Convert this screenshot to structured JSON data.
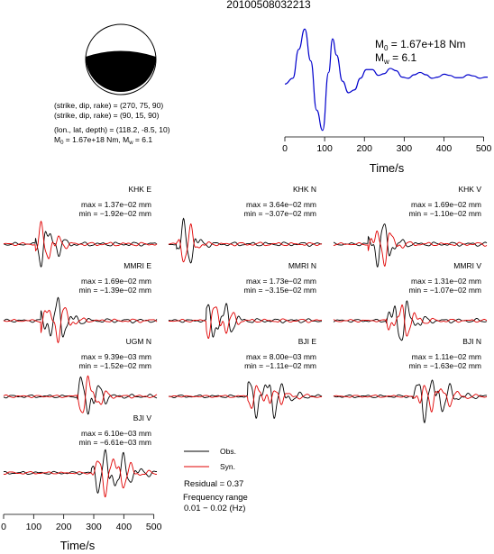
{
  "title": "20100508032213",
  "focal_mechanism": {
    "plane1": "(strike, dip, rake) = (270, 75, 90)",
    "plane2": "(strike, dip, rake) = (90, 15, 90)",
    "location": "(lon., lat, depth) = (118.2, -8.5, 10)",
    "moment_line_prefix": "M",
    "moment_line_body": " = 1.67e+18 Nm, M",
    "moment_line_suffix": " = 6.1",
    "sub0": "0",
    "subw": "w"
  },
  "stf": {
    "m0_label": "M",
    "m0_sub": "0",
    "m0_value": " = 1.67e+18 Nm",
    "mw_label": "M",
    "mw_sub": "w",
    "mw_value": " = 6.1",
    "xlabel": "Time/s"
  },
  "legend": {
    "obs": "Obs.",
    "syn": "Syn.",
    "residual": "Residual = 0.37",
    "freq_title": "Frequency range",
    "freq_value": "0.01 − 0.02 (Hz)"
  },
  "bottom_axis": {
    "xlabel": "Time/s"
  },
  "colors": {
    "observed": "#000000",
    "synthetic": "#e00000",
    "stf": "#0000cc"
  },
  "chart_data": [
    {
      "type": "line",
      "name": "source-time-function",
      "xlim": [
        0,
        510
      ],
      "xticks": [
        0,
        100,
        200,
        300,
        400,
        500
      ],
      "xlabel": "Time/s",
      "series": [
        {
          "x": [
            0,
            20,
            35,
            50,
            65,
            80,
            95,
            110,
            120,
            130,
            145,
            160,
            175,
            190,
            205,
            220,
            235,
            250,
            265,
            280,
            295,
            310,
            325,
            340,
            355,
            370,
            385,
            400,
            415,
            430,
            445,
            460,
            475,
            490,
            505,
            510
          ],
          "y": [
            0.0,
            0.1,
            0.6,
            0.95,
            0.4,
            -0.45,
            -0.8,
            0.2,
            0.78,
            0.5,
            0.05,
            -0.15,
            -0.1,
            0.1,
            0.25,
            0.25,
            0.15,
            0.18,
            0.27,
            0.23,
            0.12,
            0.1,
            0.16,
            0.2,
            0.16,
            0.1,
            0.12,
            0.17,
            0.15,
            0.11,
            0.11,
            0.16,
            0.14,
            0.1,
            0.12,
            0.12
          ]
        }
      ]
    },
    {
      "type": "line",
      "name": "waveforms",
      "xlim": [
        0,
        510
      ],
      "xticks": [
        0,
        100,
        200,
        300,
        400,
        500
      ],
      "xlabel": "Time/s",
      "panels": [
        {
          "station": "KHK E",
          "max": "max = 1.37e−02 mm",
          "min": "min = −1.92e−02 mm",
          "p0": 110,
          "w": 90,
          "amp": 1.0,
          "seed": 1,
          "misfit": 0.2
        },
        {
          "station": "KHK N",
          "max": "max = 3.64e−02 mm",
          "min": "min = −3.07e−02 mm",
          "p0": 30,
          "w": 80,
          "amp": 1.0,
          "seed": 2,
          "misfit": 0.25
        },
        {
          "station": "KHK V",
          "max": "max = 1.69e−02 mm",
          "min": "min = −1.10e−02 mm",
          "p0": 120,
          "w": 100,
          "amp": 0.95,
          "seed": 3,
          "misfit": 0.2
        },
        {
          "station": "MMRI E",
          "max": "max = 1.69e−02 mm",
          "min": "min = −1.39e−02 mm",
          "p0": 130,
          "w": 110,
          "amp": 0.95,
          "seed": 4,
          "misfit": 0.3
        },
        {
          "station": "MMRI N",
          "max": "max = 1.73e−02 mm",
          "min": "min = −3.15e−02 mm",
          "p0": 130,
          "w": 100,
          "amp": 1.0,
          "seed": 5,
          "misfit": 0.25
        },
        {
          "station": "MMRI V",
          "max": "max = 1.31e−02 mm",
          "min": "min = −1.07e−02 mm",
          "p0": 180,
          "w": 110,
          "amp": 1.0,
          "seed": 6,
          "misfit": 0.3
        },
        {
          "station": "UGM N",
          "max": "max = 9.39e−03 mm",
          "min": "min = −1.52e−02 mm",
          "p0": 250,
          "w": 90,
          "amp": 1.0,
          "seed": 7,
          "misfit": 0.25
        },
        {
          "station": "BJI E",
          "max": "max = 8.00e−03 mm",
          "min": "min = −1.11e−02 mm",
          "p0": 270,
          "w": 140,
          "amp": 1.0,
          "seed": 8,
          "misfit": 0.6
        },
        {
          "station": "BJI N",
          "max": "max = 1.11e−02 mm",
          "min": "min = −1.63e−02 mm",
          "p0": 270,
          "w": 140,
          "amp": 1.0,
          "seed": 9,
          "misfit": 0.55
        },
        {
          "station": "BJI V",
          "max": "max = 6.10e−03 mm",
          "min": "min = −6.61e−03 mm",
          "p0": 300,
          "w": 150,
          "amp": 1.0,
          "seed": 10,
          "misfit": 0.35
        }
      ]
    }
  ]
}
